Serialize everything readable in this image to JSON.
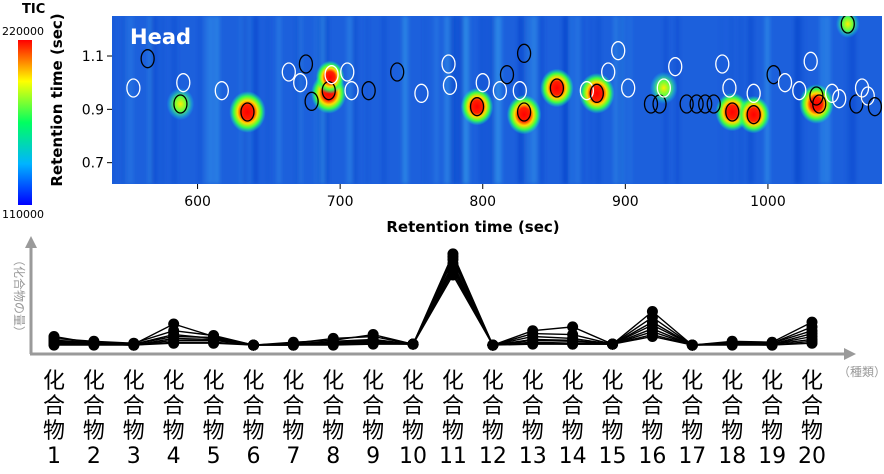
{
  "chart_data": [
    {
      "type": "heatmap",
      "panel_label": "Head",
      "colorbar": {
        "title": "TIC",
        "max_label": "220000",
        "min_label": "110000",
        "colors": [
          "#0000ff",
          "#00b4ff",
          "#00ff80",
          "#ffff00",
          "#ff0000"
        ]
      },
      "xlabel": "Retention time (sec)",
      "ylabel": "Retention time (sec)",
      "xlim": [
        540,
        1080
      ],
      "ylim": [
        0.62,
        1.25
      ],
      "xticks": [
        "600",
        "700",
        "800",
        "900",
        "1000"
      ],
      "yticks": [
        "0.7",
        "0.9",
        "1.1"
      ],
      "background_color": "#1a5ed8",
      "spots": [
        {
          "x": 588,
          "y": 0.92,
          "i": 0.55
        },
        {
          "x": 635,
          "y": 0.89,
          "i": 1.0
        },
        {
          "x": 692,
          "y": 0.96,
          "i": 0.95
        },
        {
          "x": 693,
          "y": 1.02,
          "i": 0.6
        },
        {
          "x": 796,
          "y": 0.91,
          "i": 0.8
        },
        {
          "x": 829,
          "y": 0.88,
          "i": 0.9
        },
        {
          "x": 852,
          "y": 0.98,
          "i": 0.85
        },
        {
          "x": 880,
          "y": 0.96,
          "i": 0.95
        },
        {
          "x": 927,
          "y": 0.98,
          "i": 0.55
        },
        {
          "x": 975,
          "y": 0.89,
          "i": 0.85
        },
        {
          "x": 990,
          "y": 0.88,
          "i": 0.8
        },
        {
          "x": 1034,
          "y": 0.92,
          "i": 0.9
        },
        {
          "x": 1056,
          "y": 1.22,
          "i": 0.35
        }
      ],
      "circles": [
        {
          "x": 565,
          "y": 1.09,
          "c": "black"
        },
        {
          "x": 555,
          "y": 0.98,
          "c": "white"
        },
        {
          "x": 588,
          "y": 0.92,
          "c": "black"
        },
        {
          "x": 590,
          "y": 1.0,
          "c": "white"
        },
        {
          "x": 617,
          "y": 0.97,
          "c": "white"
        },
        {
          "x": 635,
          "y": 0.89,
          "c": "black"
        },
        {
          "x": 664,
          "y": 1.04,
          "c": "white"
        },
        {
          "x": 672,
          "y": 1.0,
          "c": "white"
        },
        {
          "x": 680,
          "y": 0.93,
          "c": "black"
        },
        {
          "x": 676,
          "y": 1.07,
          "c": "black"
        },
        {
          "x": 692,
          "y": 0.97,
          "c": "black"
        },
        {
          "x": 694,
          "y": 1.03,
          "c": "white"
        },
        {
          "x": 705,
          "y": 1.04,
          "c": "white"
        },
        {
          "x": 708,
          "y": 0.97,
          "c": "white"
        },
        {
          "x": 720,
          "y": 0.97,
          "c": "black"
        },
        {
          "x": 740,
          "y": 1.04,
          "c": "black"
        },
        {
          "x": 757,
          "y": 0.96,
          "c": "white"
        },
        {
          "x": 776,
          "y": 1.07,
          "c": "white"
        },
        {
          "x": 777,
          "y": 0.99,
          "c": "white"
        },
        {
          "x": 796,
          "y": 0.91,
          "c": "black"
        },
        {
          "x": 800,
          "y": 1.0,
          "c": "white"
        },
        {
          "x": 812,
          "y": 0.97,
          "c": "white"
        },
        {
          "x": 817,
          "y": 1.03,
          "c": "black"
        },
        {
          "x": 826,
          "y": 0.97,
          "c": "white"
        },
        {
          "x": 829,
          "y": 1.11,
          "c": "black"
        },
        {
          "x": 829,
          "y": 0.89,
          "c": "black"
        },
        {
          "x": 852,
          "y": 0.98,
          "c": "black"
        },
        {
          "x": 873,
          "y": 0.97,
          "c": "white"
        },
        {
          "x": 880,
          "y": 0.96,
          "c": "black"
        },
        {
          "x": 888,
          "y": 1.04,
          "c": "white"
        },
        {
          "x": 895,
          "y": 1.12,
          "c": "white"
        },
        {
          "x": 902,
          "y": 0.98,
          "c": "white"
        },
        {
          "x": 918,
          "y": 0.92,
          "c": "black"
        },
        {
          "x": 924,
          "y": 0.92,
          "c": "black"
        },
        {
          "x": 927,
          "y": 0.98,
          "c": "white"
        },
        {
          "x": 935,
          "y": 1.06,
          "c": "white"
        },
        {
          "x": 943,
          "y": 0.92,
          "c": "black"
        },
        {
          "x": 950,
          "y": 0.92,
          "c": "black"
        },
        {
          "x": 956,
          "y": 0.92,
          "c": "black"
        },
        {
          "x": 962,
          "y": 0.92,
          "c": "black"
        },
        {
          "x": 968,
          "y": 1.07,
          "c": "white"
        },
        {
          "x": 973,
          "y": 0.98,
          "c": "white"
        },
        {
          "x": 975,
          "y": 0.89,
          "c": "black"
        },
        {
          "x": 990,
          "y": 0.96,
          "c": "white"
        },
        {
          "x": 990,
          "y": 0.88,
          "c": "black"
        },
        {
          "x": 1004,
          "y": 1.03,
          "c": "black"
        },
        {
          "x": 1012,
          "y": 1.0,
          "c": "white"
        },
        {
          "x": 1022,
          "y": 0.97,
          "c": "white"
        },
        {
          "x": 1030,
          "y": 1.08,
          "c": "white"
        },
        {
          "x": 1034,
          "y": 0.95,
          "c": "black"
        },
        {
          "x": 1036,
          "y": 0.92,
          "c": "black"
        },
        {
          "x": 1045,
          "y": 0.96,
          "c": "white"
        },
        {
          "x": 1050,
          "y": 0.94,
          "c": "white"
        },
        {
          "x": 1056,
          "y": 1.22,
          "c": "black"
        },
        {
          "x": 1062,
          "y": 0.92,
          "c": "black"
        },
        {
          "x": 1066,
          "y": 0.98,
          "c": "white"
        },
        {
          "x": 1070,
          "y": 0.95,
          "c": "white"
        },
        {
          "x": 1075,
          "y": 0.91,
          "c": "black"
        }
      ]
    },
    {
      "type": "line",
      "ylabel": "（化合物の量）",
      "xlabel": "（種類）",
      "categories": [
        "化合物1",
        "化合物2",
        "化合物3",
        "化合物4",
        "化合物5",
        "化合物6",
        "化合物7",
        "化合物8",
        "化合物9",
        "化合物10",
        "化合物11",
        "化合物12",
        "化合物13",
        "化合物14",
        "化合物15",
        "化合物16",
        "化合物17",
        "化合物18",
        "化合物19",
        "化合物20"
      ],
      "category_chars": [
        [
          "化",
          "合",
          "物",
          "1"
        ],
        [
          "化",
          "合",
          "物",
          "2"
        ],
        [
          "化",
          "合",
          "物",
          "3"
        ],
        [
          "化",
          "合",
          "物",
          "4"
        ],
        [
          "化",
          "合",
          "物",
          "5"
        ],
        [
          "化",
          "合",
          "物",
          "6"
        ],
        [
          "化",
          "合",
          "物",
          "7"
        ],
        [
          "化",
          "合",
          "物",
          "8"
        ],
        [
          "化",
          "合",
          "物",
          "9"
        ],
        [
          "化",
          "合",
          "物",
          "10"
        ],
        [
          "化",
          "合",
          "物",
          "11"
        ],
        [
          "化",
          "合",
          "物",
          "12"
        ],
        [
          "化",
          "合",
          "物",
          "13"
        ],
        [
          "化",
          "合",
          "物",
          "14"
        ],
        [
          "化",
          "合",
          "物",
          "15"
        ],
        [
          "化",
          "合",
          "物",
          "16"
        ],
        [
          "化",
          "合",
          "物",
          "17"
        ],
        [
          "化",
          "合",
          "物",
          "18"
        ],
        [
          "化",
          "合",
          "物",
          "19"
        ],
        [
          "化",
          "合",
          "物",
          "20"
        ]
      ],
      "ylim": [
        0,
        100
      ],
      "line_color": "#000000",
      "axis_color": "#999999",
      "series": [
        {
          "values": [
            12,
            5,
            4,
            25,
            12,
            3,
            6,
            8,
            14,
            4,
            98,
            3,
            18,
            22,
            4,
            38,
            3,
            7,
            6,
            27
          ]
        },
        {
          "values": [
            10,
            7,
            5,
            18,
            13,
            3,
            5,
            10,
            12,
            4,
            95,
            3,
            15,
            14,
            4,
            32,
            3,
            6,
            5,
            22
          ]
        },
        {
          "values": [
            8,
            6,
            4,
            14,
            10,
            3,
            4,
            7,
            9,
            4,
            92,
            3,
            12,
            10,
            4,
            27,
            3,
            6,
            5,
            18
          ]
        },
        {
          "values": [
            7,
            5,
            4,
            12,
            11,
            3,
            5,
            6,
            8,
            4,
            88,
            3,
            9,
            8,
            4,
            24,
            3,
            5,
            4,
            15
          ]
        },
        {
          "values": [
            6,
            5,
            3,
            10,
            9,
            3,
            4,
            6,
            7,
            4,
            85,
            3,
            8,
            7,
            4,
            20,
            3,
            5,
            4,
            12
          ]
        },
        {
          "values": [
            5,
            4,
            3,
            8,
            8,
            3,
            3,
            5,
            6,
            4,
            82,
            3,
            6,
            5,
            4,
            17,
            3,
            4,
            4,
            9
          ]
        },
        {
          "values": [
            4,
            4,
            3,
            6,
            6,
            3,
            3,
            4,
            5,
            4,
            79,
            3,
            5,
            4,
            4,
            14,
            3,
            4,
            3,
            7
          ]
        },
        {
          "values": [
            3,
            3,
            3,
            5,
            5,
            3,
            3,
            3,
            4,
            4,
            76,
            3,
            4,
            4,
            4,
            12,
            3,
            3,
            3,
            5
          ]
        }
      ]
    }
  ]
}
